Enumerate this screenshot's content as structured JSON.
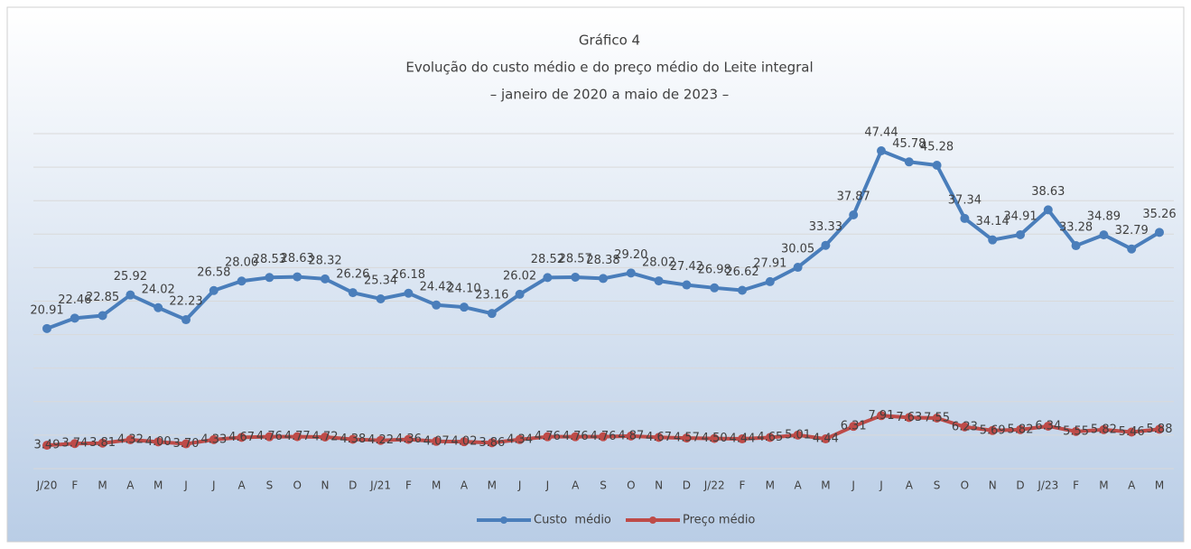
{
  "chart_data": {
    "type": "line",
    "title": [
      "Gráfico 4",
      "Evolução do custo médio e do preço médio do Leite integral",
      "– janeiro de 2020 a maio de 2023 –"
    ],
    "categories": [
      "J/20",
      "F",
      "M",
      "A",
      "M",
      "J",
      "J",
      "A",
      "S",
      "O",
      "N",
      "D",
      "J/21",
      "F",
      "M",
      "A",
      "M",
      "J",
      "J",
      "A",
      "S",
      "O",
      "N",
      "D",
      "J/22",
      "F",
      "M",
      "A",
      "M",
      "J",
      "J",
      "A",
      "S",
      "O",
      "N",
      "D",
      "J/23",
      "F",
      "M",
      "A",
      "M"
    ],
    "series": [
      {
        "name": "Custo  médio",
        "color": "#4a7ebb",
        "values": [
          20.91,
          22.46,
          22.85,
          25.92,
          24.02,
          22.23,
          26.58,
          28.0,
          28.53,
          28.63,
          28.32,
          26.26,
          25.34,
          26.18,
          24.42,
          24.1,
          23.16,
          26.02,
          28.52,
          28.57,
          28.38,
          29.2,
          28.02,
          27.42,
          26.98,
          26.62,
          27.91,
          30.05,
          33.33,
          37.87,
          47.44,
          45.78,
          45.28,
          37.34,
          34.14,
          34.91,
          38.63,
          33.28,
          34.89,
          32.79,
          35.26
        ],
        "value_labels": [
          "20.91",
          "22.46",
          "22.85",
          "25.92",
          "24.02",
          "22.23",
          "26.58",
          "28.00",
          "28.53",
          "28.63",
          "28.32",
          "26.26",
          "25.34",
          "26.18",
          "24.42",
          "24.10",
          "23.16",
          "26.02",
          "28.52",
          "28.57",
          "28.38",
          "29.20",
          "28.02",
          "27.42",
          "26.98",
          "26.62",
          "27.91",
          "30.05",
          "33.33",
          "37.87",
          "47.44",
          "45.78",
          "45.28",
          "37.34",
          "34.14",
          "34.91",
          "38.63",
          "33.28",
          "34.89",
          "32.79",
          "35.26"
        ]
      },
      {
        "name": "Preço médio",
        "color": "#be4b48",
        "values": [
          3.49,
          3.74,
          3.81,
          4.32,
          4.0,
          3.7,
          4.33,
          4.67,
          4.76,
          4.77,
          4.72,
          4.38,
          4.22,
          4.36,
          4.07,
          4.02,
          3.86,
          4.34,
          4.76,
          4.76,
          4.76,
          4.87,
          4.67,
          4.57,
          4.5,
          4.44,
          4.65,
          5.01,
          4.44,
          6.31,
          7.91,
          7.63,
          7.55,
          6.23,
          5.69,
          5.82,
          6.34,
          5.55,
          5.82,
          5.46,
          5.88
        ],
        "value_labels": [
          "3.49",
          "3.74",
          "3.81",
          "4.32",
          "4.00",
          "3.70",
          "4.33",
          "4.67",
          "4.76",
          "4.77",
          "4.72",
          "4.38",
          "4.22",
          "4.36",
          "4.07",
          "4.02",
          "3.86",
          "4.34",
          "4.76",
          "4.76",
          "4.76",
          "4.87",
          "4.67",
          "4.57",
          "4.50",
          "4.44",
          "4.65",
          "5.01",
          "4.44",
          "6.31",
          "7.91",
          "7.63",
          "7.55",
          "6.23",
          "5.69",
          "5.82",
          "6.34",
          "5.55",
          "5.82",
          "5.46",
          "5.88"
        ]
      }
    ],
    "ylim": [
      0,
      50
    ],
    "yticks": [
      0,
      5,
      10,
      15,
      20,
      25,
      30,
      35,
      40,
      45,
      50
    ],
    "grid": true,
    "legend": "bottom"
  }
}
